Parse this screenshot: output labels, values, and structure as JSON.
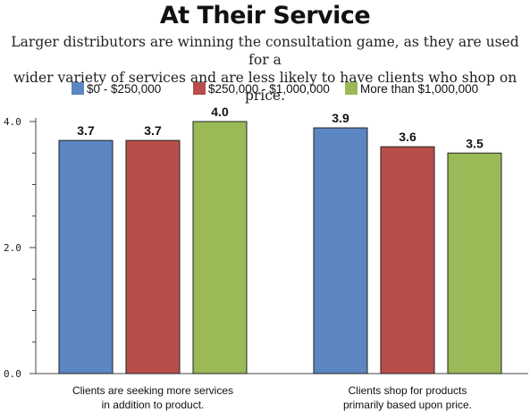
{
  "chart_data": {
    "type": "bar",
    "title": "At Their Service",
    "subtitle_lines": [
      "Larger distributors are winning the consultation game, as they are used for a",
      "wider variety of services and are less likely to have clients who shop on price."
    ],
    "categories": [
      [
        "Clients are seeking more services",
        "in addition to product."
      ],
      [
        "Clients shop for products",
        "primarily based upon price."
      ]
    ],
    "series": [
      {
        "name": "$0 - $250,000",
        "color": "#5b86c1",
        "values": [
          3.7,
          3.9
        ],
        "labels": [
          "3.7",
          "3.9"
        ]
      },
      {
        "name": "$250,000 - $1,000,000",
        "color": "#b94d4a",
        "values": [
          3.7,
          3.6
        ],
        "labels": [
          "3.7",
          "3.6"
        ]
      },
      {
        "name": "More than $1,000,000",
        "color": "#9ab957",
        "values": [
          4.0,
          3.5
        ],
        "labels": [
          "4.0",
          "3.5"
        ]
      }
    ],
    "ylim": [
      0,
      4.0
    ],
    "yticks": [
      {
        "value": 0,
        "label": "0.0"
      },
      {
        "value": 2,
        "label": "2.0"
      },
      {
        "value": 4,
        "label": "4.0"
      }
    ],
    "minor_tick_step": 0.5,
    "legend_position": "top-center",
    "grid": false
  }
}
